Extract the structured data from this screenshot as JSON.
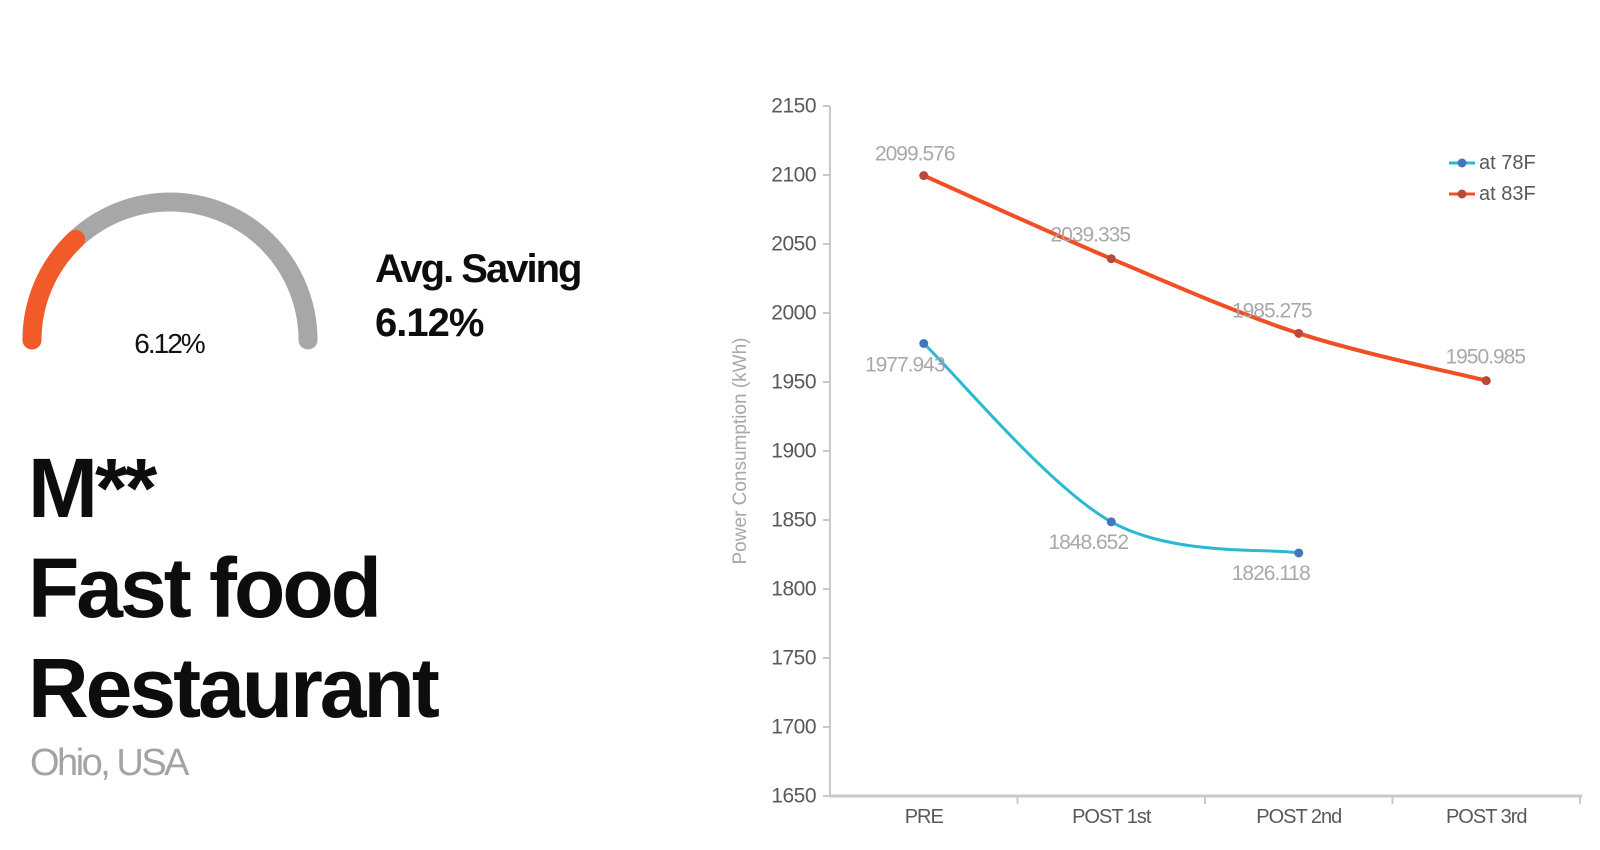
{
  "left_panel": {
    "avg_saving": {
      "label": "Avg. Saving",
      "value": "6.12%"
    },
    "title_lines": [
      "M**",
      "Fast food",
      "Restaurant"
    ],
    "subtitle": "Ohio, USA"
  },
  "chart_data": [
    {
      "type": "gauge",
      "value_percent": 6.12,
      "value_label": "6.12%",
      "track_color": "#a7a7a7",
      "fill_color": "#f15a29",
      "arc_fraction": 0.26
    },
    {
      "type": "line",
      "title": "",
      "xlabel": "",
      "ylabel": "Power Consumption (kWh)",
      "categories": [
        "PRE",
        "POST 1st",
        "POST 2nd",
        "POST 3rd"
      ],
      "series": [
        {
          "name": "at 78F",
          "values": [
            1977.943,
            1848.652,
            1826.118
          ],
          "line_color": "#2ab8d2",
          "marker_color": "#4377bd",
          "line_width": 3
        },
        {
          "name": "at 83F",
          "values": [
            2099.576,
            2039.335,
            1985.275,
            1950.985
          ],
          "line_color": "#f04e23",
          "marker_color": "#b8493c",
          "line_width": 4
        }
      ],
      "label_offsets": [
        [
          [
            -19,
            28
          ],
          [
            -23,
            27
          ],
          [
            -28,
            27
          ]
        ],
        [
          [
            -9,
            -15
          ],
          [
            -21,
            -17
          ],
          [
            -27,
            -16
          ],
          [
            -1,
            -17
          ]
        ]
      ],
      "ylim": [
        1650,
        2150
      ],
      "ytick_step": 50,
      "grid": false,
      "smooth": true,
      "legend_position": "top-right",
      "axis_color": "#c9c9c9",
      "tick_label_color": "#595959",
      "data_label_color": "#a8a8a8",
      "axis_title_color": "#a8a8a8",
      "legend_text_color": "#595959"
    }
  ]
}
